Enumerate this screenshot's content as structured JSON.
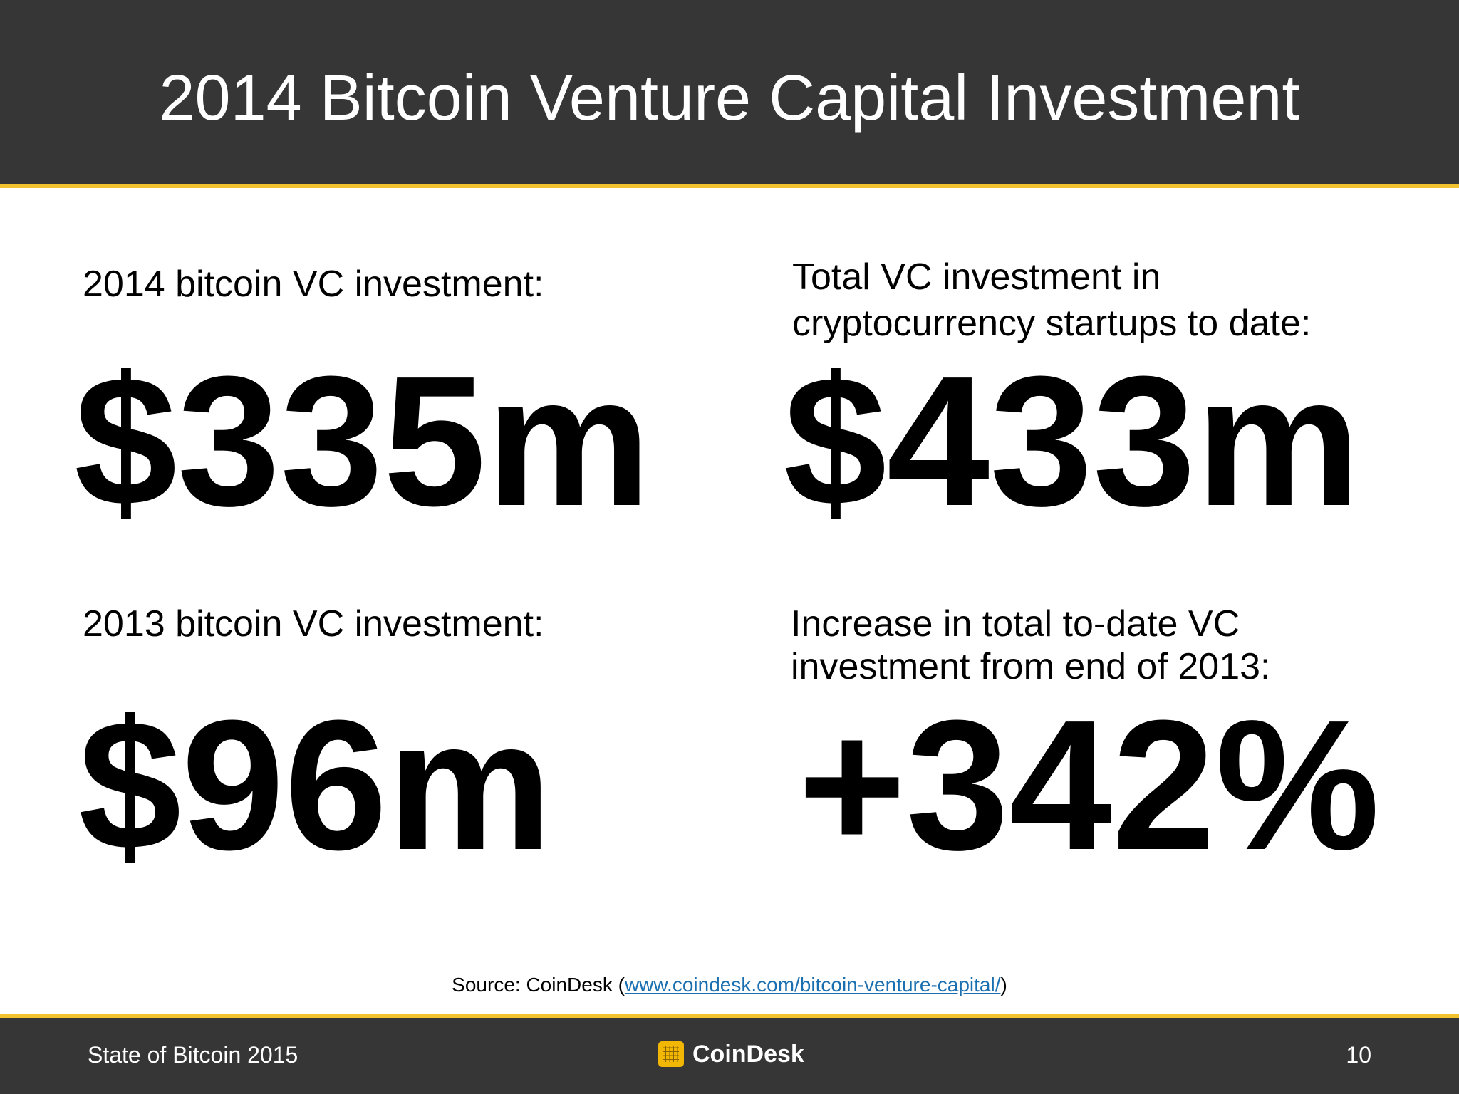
{
  "slide": {
    "title": "2014 Bitcoin Venture Capital Investment"
  },
  "stats": [
    {
      "label": "2014 bitcoin VC investment:",
      "value": "$335m"
    },
    {
      "label_lines": [
        "Total VC investment in",
        "cryptocurrency startups to date:"
      ],
      "value": "$433m"
    },
    {
      "label": "2013 bitcoin VC investment:",
      "value": "$96m"
    },
    {
      "label_lines": [
        "Increase in total to-date VC",
        "investment from end of 2013:"
      ],
      "value": "+342%"
    }
  ],
  "source": {
    "prefix": "Source: CoinDesk (",
    "link_text": "www.coindesk.com/bitcoin-venture-capital/",
    "suffix": ")"
  },
  "footer": {
    "left_text": "State of Bitcoin 2015",
    "logo_text": "CoinDesk",
    "logo_icon": "coindesk-logo-icon",
    "page_number": "10"
  },
  "colors": {
    "header_bg": "#363636",
    "accent": "#f2c12e",
    "link": "#1a6fb0",
    "logo_mark": "#f2b705"
  }
}
